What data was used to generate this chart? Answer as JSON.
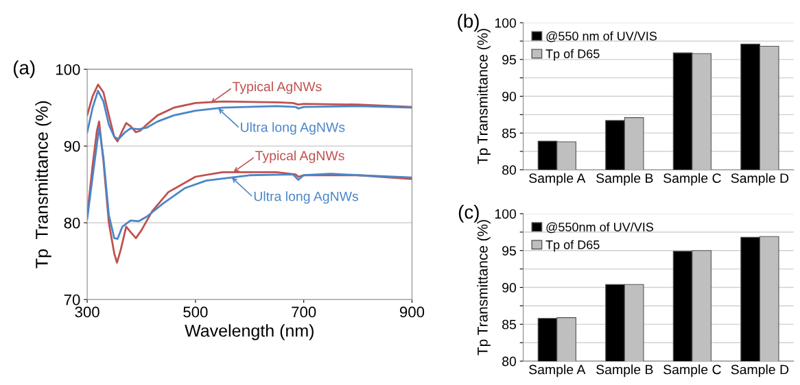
{
  "chart_data": [
    {
      "type": "line",
      "title": "(a)",
      "xlabel": "Wavelength (nm)",
      "ylabel": "Tp  Transmittance (%)",
      "xlim": [
        300,
        900
      ],
      "xticks": [
        300,
        500,
        700,
        900
      ],
      "ylim": [
        70,
        100
      ],
      "yticks": [
        70,
        80,
        90,
        100
      ],
      "grid": "y",
      "line_style": "solid",
      "marker": "none",
      "series": [
        {
          "color": "#c0504d",
          "x": [
            300,
            310,
            320,
            330,
            340,
            350,
            356,
            365,
            372,
            380,
            390,
            398,
            410,
            430,
            460,
            500,
            550,
            650,
            680,
            690,
            700,
            800,
            900
          ],
          "values": [
            94.0,
            96.5,
            98.0,
            97.0,
            94.0,
            91.2,
            90.6,
            92.0,
            93.0,
            92.6,
            91.8,
            92.0,
            92.8,
            94.0,
            95.0,
            95.6,
            95.8,
            95.7,
            95.6,
            95.4,
            95.5,
            95.4,
            95.1
          ]
        },
        {
          "color": "#4a86c8",
          "x": [
            300,
            310,
            320,
            330,
            340,
            350,
            358,
            370,
            380,
            395,
            410,
            430,
            460,
            500,
            550,
            650,
            685,
            690,
            700,
            800,
            900
          ],
          "values": [
            91.8,
            95.0,
            97.2,
            95.8,
            92.8,
            91.2,
            90.9,
            91.8,
            92.3,
            92.2,
            92.4,
            93.2,
            94.0,
            94.6,
            95.0,
            95.2,
            95.1,
            94.9,
            95.1,
            95.2,
            95.0
          ]
        },
        {
          "color": "#c0504d",
          "x": [
            300,
            310,
            318,
            322,
            330,
            340,
            350,
            355,
            362,
            372,
            380,
            390,
            400,
            420,
            450,
            500,
            550,
            650,
            685,
            690,
            700,
            800,
            900
          ],
          "values": [
            81.0,
            87.5,
            92.0,
            93.2,
            88.0,
            80.0,
            76.0,
            74.8,
            76.5,
            79.5,
            78.8,
            78.0,
            79.0,
            81.5,
            84.0,
            86.0,
            86.6,
            86.6,
            86.3,
            86.0,
            86.2,
            86.2,
            85.7
          ]
        },
        {
          "color": "#4a86c8",
          "x": [
            300,
            310,
            322,
            330,
            340,
            350,
            356,
            365,
            380,
            395,
            410,
            440,
            480,
            520,
            600,
            680,
            690,
            700,
            750,
            800,
            900
          ],
          "values": [
            80.5,
            86.0,
            92.4,
            88.5,
            81.0,
            78.0,
            77.9,
            79.5,
            80.3,
            80.2,
            80.8,
            82.5,
            84.5,
            85.5,
            86.2,
            86.3,
            85.6,
            86.2,
            86.4,
            86.2,
            85.9
          ]
        }
      ],
      "annotations": [
        {
          "text": "Typical AgNWs",
          "x": 528,
          "y": 95.6
        },
        {
          "text": "Ultra long AgNWs",
          "x": 542,
          "y": 94.9
        },
        {
          "text": "Typical AgNWs",
          "x": 570,
          "y": 86.6
        },
        {
          "text": "Ultra long AgNWs",
          "x": 567,
          "y": 85.9
        }
      ]
    },
    {
      "type": "bar",
      "title": "(b)",
      "ylabel": "Tp Transmittance (%)",
      "categories": [
        "Sample A",
        "Sample B",
        "Sample C",
        "Sample D"
      ],
      "ylim": [
        80,
        100
      ],
      "yticks": [
        80,
        {
          "value": 82.5,
          "label": null
        },
        85,
        {
          "value": 87.5,
          "label": null
        },
        90,
        {
          "value": 92.5,
          "label": null
        },
        95,
        {
          "value": 97.5,
          "label": null
        },
        100
      ],
      "grid": "y",
      "legend": "top left",
      "series": [
        {
          "name": "@550 nm of UV/VIS",
          "color": "#000000",
          "values": [
            83.9,
            86.7,
            95.9,
            97.1
          ]
        },
        {
          "name": "Tp of D65",
          "color": "#bfbfbf",
          "values": [
            83.8,
            87.1,
            95.8,
            96.8
          ]
        }
      ]
    },
    {
      "type": "bar",
      "title": "(c)",
      "ylabel": "Tp Transmittance (%)",
      "categories": [
        "Sample A",
        "Sample B",
        "Sample C",
        "Sample D"
      ],
      "ylim": [
        80,
        100
      ],
      "yticks": [
        80,
        {
          "value": 82.5,
          "label": null
        },
        85,
        {
          "value": 87.5,
          "label": null
        },
        90,
        {
          "value": 92.5,
          "label": null
        },
        95,
        {
          "value": 97.5,
          "label": null
        },
        100
      ],
      "grid": "y",
      "legend": "top left",
      "series": [
        {
          "name": "@550nm of UV/VIS",
          "color": "#000000",
          "values": [
            85.8,
            90.4,
            94.9,
            96.8
          ]
        },
        {
          "name": "Tp of D65",
          "color": "#bfbfbf",
          "values": [
            85.9,
            90.4,
            95.0,
            96.9
          ]
        }
      ]
    }
  ]
}
